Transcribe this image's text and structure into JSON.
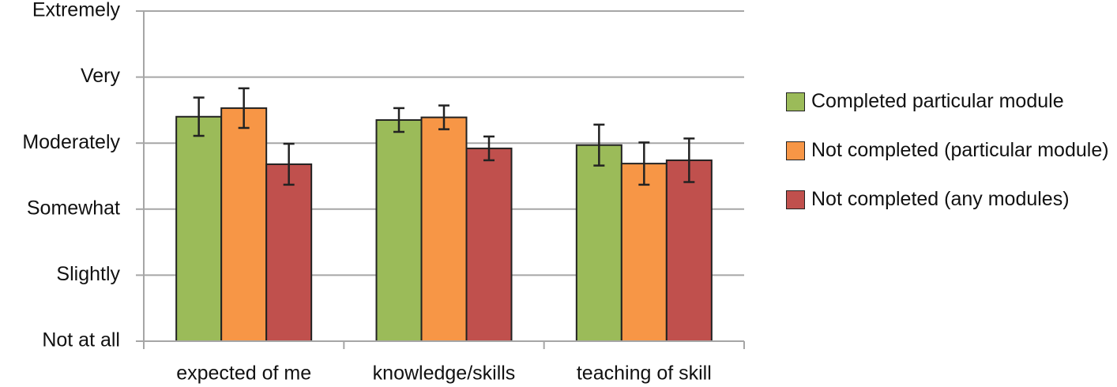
{
  "chart_data": {
    "type": "bar",
    "categories": [
      "expected of me",
      "knowledge/skills",
      "teaching of skill"
    ],
    "series": [
      {
        "name": "Completed particular module",
        "color": "#9bbb59",
        "values": [
          3.4,
          3.35,
          2.97
        ],
        "errors": [
          0.29,
          0.18,
          0.31
        ]
      },
      {
        "name": "Not completed (particular module)",
        "color": "#f79646",
        "values": [
          3.53,
          3.39,
          2.69
        ],
        "errors": [
          0.3,
          0.18,
          0.32
        ]
      },
      {
        "name": "Not completed (any modules)",
        "color": "#c0504d",
        "values": [
          2.68,
          2.92,
          2.74
        ],
        "errors": [
          0.31,
          0.18,
          0.33
        ]
      }
    ],
    "ylim": [
      0,
      5
    ],
    "yticks": [
      {
        "value": 0,
        "label": "Not at all"
      },
      {
        "value": 1,
        "label": "Slightly"
      },
      {
        "value": 2,
        "label": "Somewhat"
      },
      {
        "value": 3,
        "label": "Moderately"
      },
      {
        "value": 4,
        "label": "Very"
      },
      {
        "value": 5,
        "label": "Extremely"
      }
    ],
    "grid": true,
    "legend": "right"
  }
}
